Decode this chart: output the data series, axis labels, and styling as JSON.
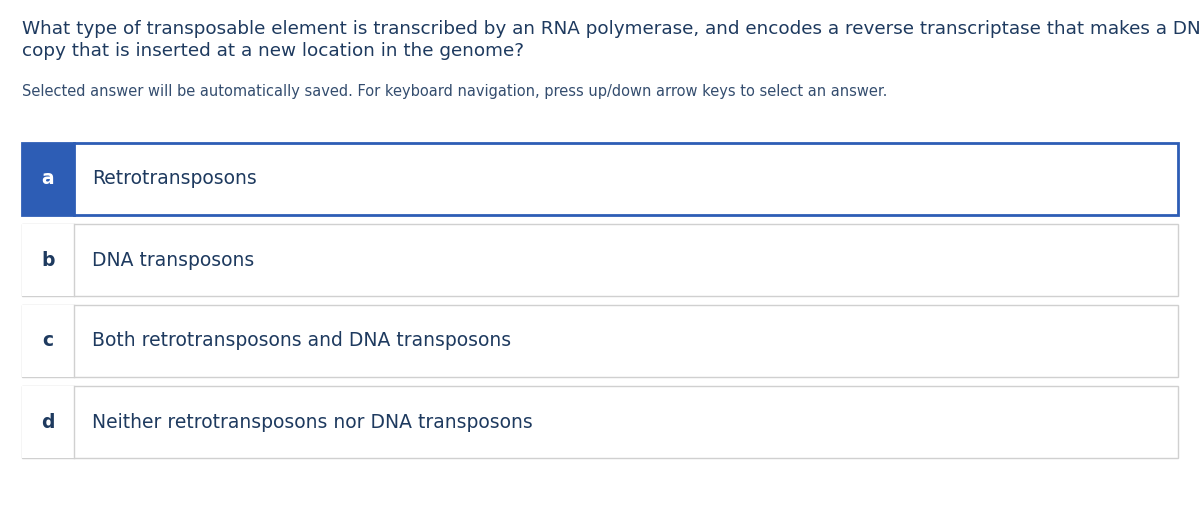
{
  "question_line1": "What type of transposable element is transcribed by an RNA polymerase, and encodes a reverse transcriptase that makes a DNA",
  "question_line2": "copy that is inserted at a new location in the genome?",
  "instruction": "Selected answer will be automatically saved. For keyboard navigation, press up/down arrow keys to select an answer.",
  "options": [
    {
      "label": "a",
      "text": "Retrotransposons",
      "selected": true
    },
    {
      "label": "b",
      "text": "DNA transposons",
      "selected": false
    },
    {
      "label": "c",
      "text": "Both retrotransposons and DNA transposons",
      "selected": false
    },
    {
      "label": "d",
      "text": "Neither retrotransposons nor DNA transposons",
      "selected": false
    }
  ],
  "bg_color": "#ffffff",
  "text_color": "#1e3a5f",
  "selected_bg": "#2d5db5",
  "selected_border": "#2d5db5",
  "unselected_border": "#d0d0d0",
  "unselected_bg": "#ffffff",
  "label_text_selected": "#ffffff",
  "label_text_unselected": "#1e3a5f",
  "question_fontsize": 13.2,
  "instruction_fontsize": 10.5,
  "option_fontsize": 13.5,
  "label_fontsize": 13.5
}
